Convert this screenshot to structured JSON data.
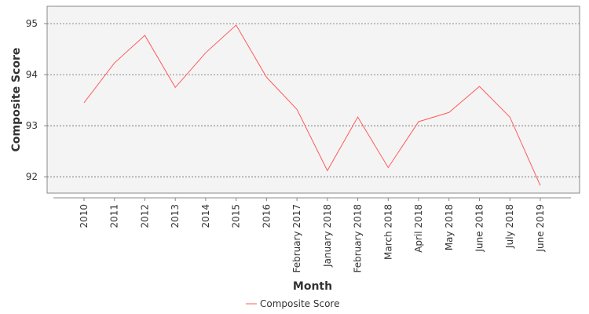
{
  "chart_data": {
    "type": "line",
    "x_label": "Month",
    "y_label": "Composite Score",
    "categories": [
      "2010",
      "2011",
      "2012",
      "2013",
      "2014",
      "2015",
      "2016",
      "February 2017",
      "January 2018",
      "February 2018",
      "March 2018",
      "April 2018",
      "May 2018",
      "June 2018",
      "July 2018",
      "June 2019"
    ],
    "series": [
      {
        "name": "Composite Score",
        "color": "#ff5b5b",
        "values": [
          93.45,
          94.23,
          94.77,
          93.75,
          94.43,
          94.97,
          93.95,
          93.32,
          92.12,
          93.17,
          92.18,
          93.08,
          93.26,
          93.77,
          93.17,
          91.83
        ]
      }
    ],
    "ylim": [
      91.68,
      95.34
    ],
    "yticks": [
      92,
      93,
      94,
      95
    ],
    "grid": true
  }
}
